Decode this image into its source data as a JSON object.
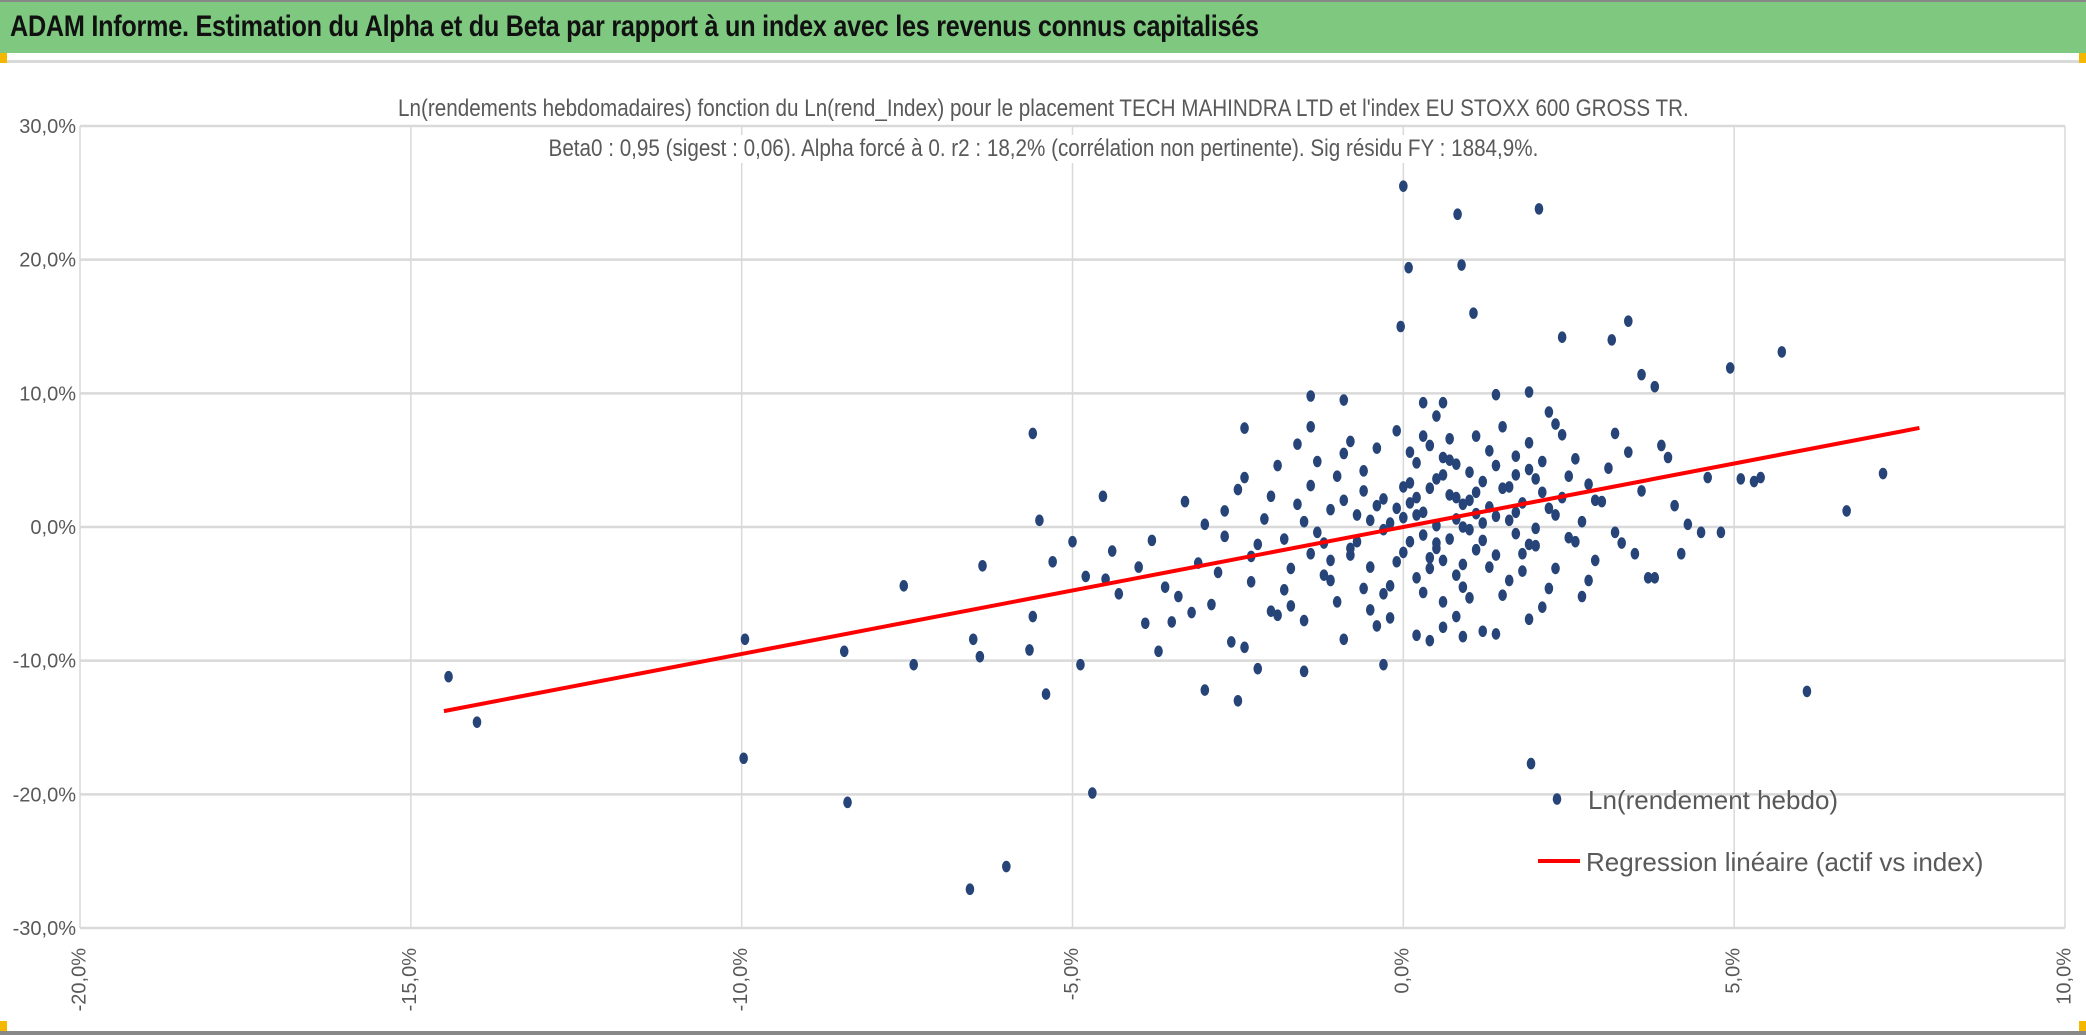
{
  "header": {
    "title": "ADAM Informe. Estimation du Alpha et du Beta par rapport à un index avec les revenus connus capitalisés"
  },
  "colors": {
    "header_bg": "#7ec87f",
    "points": "#264478",
    "regression": "#ff0000",
    "grid": "#d9d9d9"
  },
  "chart_data": {
    "type": "scatter",
    "title": "Ln(rendements hebdomadaires) fonction du Ln(rend_Index) pour le placement TECH MAHINDRA LTD et l'index EU STOXX 600 GROSS TR.",
    "subtitle": "Beta0 : 0,95 (sigest : 0,06). Alpha forcé à 0. r2 : 18,2% (corrélation non pertinente). Sig résidu FY : 1884,9%.",
    "xlabel": "",
    "ylabel": "",
    "xlim": [
      -20,
      10
    ],
    "ylim": [
      -30,
      30
    ],
    "x_ticks": [
      -20,
      -15,
      -10,
      -5,
      0,
      5,
      10
    ],
    "x_tick_labels": [
      "-20,0%",
      "-15,0%",
      "-10,0%",
      "-5,0%",
      "0,0%",
      "5,0%",
      "10,0%"
    ],
    "y_ticks": [
      30,
      20,
      10,
      0,
      -10,
      -20,
      -30
    ],
    "y_tick_labels": [
      "30,0%",
      "20,0%",
      "10,0%",
      "0,0%",
      "-10,0%",
      "-20,0%",
      "-30,0%"
    ],
    "grid": true,
    "legend_position": "bottom-right",
    "legend": [
      "Ln(rendement hebdo)",
      "Regression linéaire (actif vs index)"
    ],
    "regression": {
      "beta": 0.95,
      "alpha": 0,
      "x_range": [
        -14.5,
        7.8
      ]
    },
    "series": [
      {
        "name": "Ln(rendement hebdo)",
        "points": [
          [
            -14.43,
            -11.2
          ],
          [
            -14.0,
            -14.6
          ],
          [
            -9.95,
            -8.4
          ],
          [
            -9.97,
            -17.3
          ],
          [
            -8.45,
            -9.3
          ],
          [
            -8.4,
            -20.6
          ],
          [
            -7.55,
            -4.4
          ],
          [
            -7.4,
            -10.3
          ],
          [
            -6.55,
            -27.1
          ],
          [
            -6.5,
            -8.4
          ],
          [
            -6.4,
            -9.7
          ],
          [
            -6.36,
            -2.9
          ],
          [
            -6.0,
            -25.4
          ],
          [
            -5.6,
            7.0
          ],
          [
            -5.6,
            -6.7
          ],
          [
            -5.65,
            -9.2
          ],
          [
            -5.5,
            0.5
          ],
          [
            -5.4,
            -12.5
          ],
          [
            -5.3,
            -2.6
          ],
          [
            -4.88,
            -10.3
          ],
          [
            -4.7,
            -19.9
          ],
          [
            -4.54,
            2.3
          ],
          [
            -4.5,
            -3.9
          ],
          [
            0.0,
            25.5
          ],
          [
            -0.04,
            15.0
          ],
          [
            0.08,
            19.4
          ],
          [
            0.82,
            23.4
          ],
          [
            0.88,
            19.6
          ],
          [
            1.06,
            16.0
          ],
          [
            2.05,
            23.8
          ],
          [
            2.4,
            14.2
          ],
          [
            3.15,
            14.0
          ],
          [
            3.4,
            15.4
          ],
          [
            3.6,
            11.4
          ],
          [
            3.8,
            10.5
          ],
          [
            4.94,
            11.9
          ],
          [
            5.72,
            13.1
          ],
          [
            7.25,
            4.0
          ],
          [
            6.7,
            1.2
          ],
          [
            6.1,
            -12.3
          ],
          [
            1.93,
            -17.7
          ],
          [
            4.5,
            -0.4
          ],
          [
            4.8,
            -0.4
          ],
          [
            5.1,
            3.6
          ],
          [
            5.3,
            3.4
          ],
          [
            5.4,
            3.7
          ],
          [
            -0.3,
            2.1
          ],
          [
            0.5,
            -1.2
          ],
          [
            1.2,
            3.4
          ],
          [
            -1.1,
            -2.5
          ],
          [
            0.8,
            0.6
          ],
          [
            -0.6,
            4.2
          ],
          [
            1.7,
            1.1
          ],
          [
            0.2,
            -3.8
          ],
          [
            -1.8,
            -0.9
          ],
          [
            2.1,
            2.6
          ],
          [
            0.9,
            -4.5
          ],
          [
            -0.2,
            0.3
          ],
          [
            1.4,
            -2.1
          ],
          [
            -1.4,
            3.1
          ],
          [
            0.6,
            5.2
          ],
          [
            2.5,
            -0.8
          ],
          [
            -2.3,
            -4.1
          ],
          [
            0.1,
            1.8
          ],
          [
            1.0,
            -0.2
          ],
          [
            -0.8,
            -1.6
          ],
          [
            1.9,
            4.3
          ],
          [
            -2.7,
            1.2
          ],
          [
            0.4,
            6.1
          ],
          [
            2.8,
            3.2
          ],
          [
            -1.0,
            -5.6
          ],
          [
            0.7,
            2.4
          ],
          [
            1.5,
            -5.1
          ],
          [
            -0.5,
            -3.0
          ],
          [
            0.3,
            -0.6
          ],
          [
            2.3,
            0.9
          ],
          [
            -1.6,
            1.7
          ],
          [
            1.1,
            6.8
          ],
          [
            -3.1,
            -2.7
          ],
          [
            0.0,
            -1.9
          ],
          [
            1.8,
            -3.3
          ],
          [
            -0.9,
            5.5
          ],
          [
            2.0,
            -1.4
          ],
          [
            -2.0,
            -6.3
          ],
          [
            0.6,
            3.9
          ],
          [
            1.3,
            1.5
          ],
          [
            -1.3,
            -0.4
          ],
          [
            2.6,
            5.1
          ],
          [
            -0.1,
            7.2
          ],
          [
            3.0,
            1.9
          ],
          [
            -2.5,
            2.8
          ],
          [
            0.8,
            -6.7
          ],
          [
            1.6,
            3.0
          ],
          [
            -0.4,
            -7.4
          ],
          [
            2.2,
            -4.6
          ],
          [
            -1.9,
            4.6
          ],
          [
            0.5,
            0.1
          ],
          [
            1.0,
            2.0
          ],
          [
            -0.7,
            0.9
          ],
          [
            0.9,
            -2.8
          ],
          [
            3.3,
            -1.2
          ],
          [
            -3.4,
            -5.2
          ],
          [
            0.2,
            4.8
          ],
          [
            1.7,
            -0.5
          ],
          [
            -1.2,
            -3.6
          ],
          [
            2.4,
            2.2
          ],
          [
            -0.3,
            -5.0
          ],
          [
            1.2,
            -7.8
          ],
          [
            -2.2,
            -1.3
          ],
          [
            0.4,
            -2.3
          ],
          [
            1.4,
            0.8
          ],
          [
            -0.6,
            2.7
          ],
          [
            2.9,
            -2.5
          ],
          [
            -1.5,
            -7.0
          ],
          [
            0.7,
            -0.9
          ],
          [
            1.9,
            6.3
          ],
          [
            -2.8,
            -3.4
          ],
          [
            0.1,
            3.3
          ],
          [
            3.6,
            2.7
          ],
          [
            -0.8,
            6.4
          ],
          [
            1.1,
            -1.7
          ],
          [
            -1.7,
            -5.9
          ],
          [
            0.3,
            1.1
          ],
          [
            2.1,
            -6.0
          ],
          [
            -3.8,
            -1.0
          ],
          [
            0.8,
            4.7
          ],
          [
            1.5,
            2.9
          ],
          [
            -0.2,
            -4.4
          ],
          [
            2.7,
            0.4
          ],
          [
            -2.4,
            3.7
          ],
          [
            0.6,
            -5.6
          ],
          [
            1.3,
            5.7
          ],
          [
            -1.1,
            1.3
          ],
          [
            0.0,
            0.7
          ],
          [
            1.8,
            -2.0
          ],
          [
            -0.5,
            -6.2
          ],
          [
            3.1,
            4.4
          ],
          [
            -3.0,
            0.2
          ],
          [
            0.9,
            1.7
          ],
          [
            2.3,
            -3.1
          ],
          [
            -1.4,
            -2.0
          ],
          [
            0.5,
            8.3
          ],
          [
            1.6,
            -4.0
          ],
          [
            -0.9,
            -8.4
          ],
          [
            2.0,
            3.6
          ],
          [
            -2.1,
            0.6
          ],
          [
            0.2,
            -8.1
          ],
          [
            1.0,
            4.1
          ],
          [
            -0.4,
            1.6
          ],
          [
            2.6,
            -1.1
          ],
          [
            -1.8,
            -4.7
          ],
          [
            0.7,
            6.6
          ],
          [
            1.2,
            0.3
          ],
          [
            -3.5,
            -7.1
          ],
          [
            3.4,
            5.6
          ],
          [
            -0.1,
            -2.6
          ],
          [
            1.5,
            7.5
          ],
          [
            -2.6,
            -8.6
          ],
          [
            0.4,
            2.9
          ],
          [
            2.2,
            1.4
          ],
          [
            -1.0,
            3.8
          ],
          [
            0.8,
            -3.6
          ],
          [
            1.9,
            -6.9
          ],
          [
            -2.9,
            -5.8
          ],
          [
            0.3,
            -4.9
          ],
          [
            2.8,
            -4.0
          ],
          [
            -0.7,
            -1.1
          ],
          [
            1.1,
            2.6
          ],
          [
            -1.6,
            6.2
          ],
          [
            0.6,
            -7.5
          ],
          [
            3.7,
            -3.8
          ],
          [
            -4.0,
            -3.0
          ],
          [
            0.1,
            5.6
          ],
          [
            1.7,
            3.9
          ],
          [
            -0.3,
            -0.2
          ],
          [
            2.4,
            6.9
          ],
          [
            -2.3,
            -2.2
          ],
          [
            0.9,
            0.0
          ],
          [
            1.4,
            -8.0
          ],
          [
            -1.3,
            4.9
          ],
          [
            0.5,
            -1.6
          ],
          [
            2.0,
            -0.1
          ],
          [
            -0.6,
            -4.6
          ],
          [
            4.1,
            1.6
          ],
          [
            -3.3,
            1.9
          ],
          [
            0.2,
            2.2
          ],
          [
            1.3,
            -3.0
          ],
          [
            -1.9,
            -6.6
          ],
          [
            2.5,
            3.8
          ],
          [
            -0.8,
            -2.1
          ],
          [
            0.7,
            5.0
          ],
          [
            1.6,
            0.5
          ],
          [
            -2.7,
            -0.7
          ],
          [
            0.0,
            3.0
          ],
          [
            3.2,
            -0.4
          ],
          [
            -1.1,
            -4.0
          ],
          [
            1.0,
            -5.3
          ],
          [
            -0.4,
            5.9
          ],
          [
            2.1,
            4.9
          ],
          [
            -2.0,
            2.3
          ],
          [
            0.4,
            -3.1
          ],
          [
            1.8,
            1.8
          ],
          [
            -1.5,
            0.4
          ],
          [
            0.6,
            9.3
          ],
          [
            2.7,
            -5.2
          ],
          [
            -3.6,
            -4.5
          ],
          [
            0.3,
            6.8
          ],
          [
            1.2,
            -1.0
          ],
          [
            -0.2,
            -6.8
          ],
          [
            4.3,
            0.2
          ],
          [
            -2.4,
            -9.0
          ],
          [
            0.8,
            2.2
          ],
          [
            1.9,
            -1.3
          ],
          [
            -0.9,
            2.0
          ],
          [
            0.1,
            -1.1
          ],
          [
            2.3,
            7.7
          ],
          [
            -1.7,
            -3.1
          ],
          [
            0.5,
            3.6
          ],
          [
            1.4,
            4.6
          ],
          [
            -0.5,
            0.5
          ],
          [
            3.5,
            -2.0
          ],
          [
            -4.4,
            -1.8
          ],
          [
            0.9,
            -8.2
          ],
          [
            1.1,
            1.0
          ],
          [
            -1.2,
            -1.2
          ],
          [
            0.2,
            0.9
          ],
          [
            2.9,
            2.0
          ],
          [
            -3.2,
            -6.4
          ],
          [
            0.6,
            -2.5
          ],
          [
            1.7,
            5.3
          ],
          [
            -0.1,
            1.4
          ],
          [
            -1.4,
            9.8
          ],
          [
            -0.9,
            9.5
          ],
          [
            1.4,
            9.9
          ],
          [
            0.3,
            9.3
          ],
          [
            1.9,
            10.1
          ],
          [
            -5.0,
            -1.1
          ],
          [
            -4.8,
            -3.7
          ],
          [
            -4.3,
            -5.0
          ],
          [
            -3.9,
            -7.2
          ],
          [
            -3.7,
            -9.3
          ],
          [
            -2.5,
            -13.0
          ],
          [
            -3.0,
            -12.2
          ],
          [
            -2.2,
            -10.6
          ],
          [
            -1.5,
            -10.8
          ],
          [
            -0.3,
            -10.3
          ],
          [
            0.4,
            -8.5
          ],
          [
            4.2,
            -2.0
          ],
          [
            3.8,
            -3.8
          ],
          [
            4.0,
            5.2
          ],
          [
            4.6,
            3.7
          ],
          [
            3.9,
            6.1
          ],
          [
            3.2,
            7.0
          ],
          [
            2.2,
            8.6
          ],
          [
            -1.4,
            7.5
          ],
          [
            -2.4,
            7.4
          ]
        ]
      }
    ]
  }
}
